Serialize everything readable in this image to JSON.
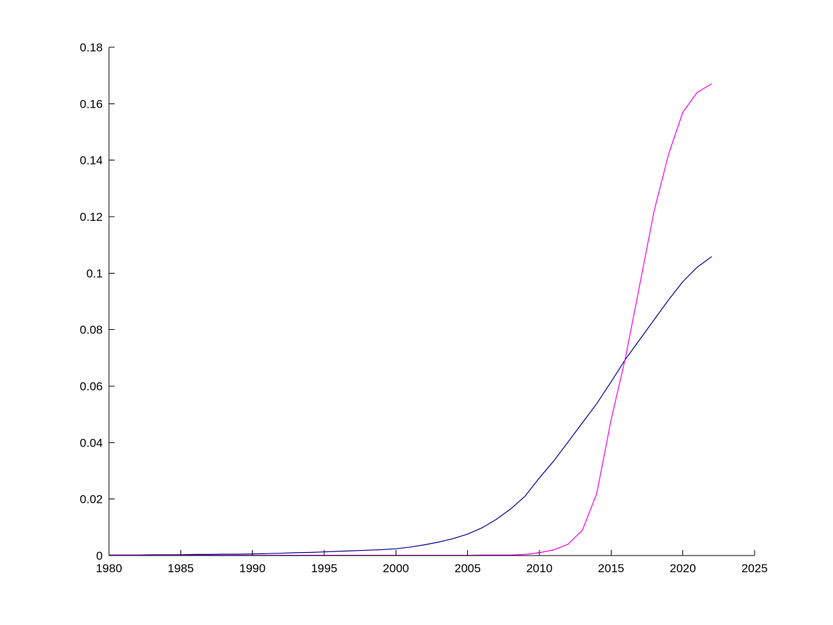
{
  "figure": {
    "background": "#ffffff",
    "axis_color": "#000000"
  },
  "chart_data": {
    "type": "line",
    "title": "",
    "xlabel": "",
    "ylabel": "",
    "grid": false,
    "legend_position": "none",
    "xlim": [
      1980,
      2025
    ],
    "ylim": [
      0,
      0.18
    ],
    "x_tick_values": [
      1980,
      1985,
      1990,
      1995,
      2000,
      2005,
      2010,
      2015,
      2020,
      2025
    ],
    "x_tick_labels": [
      "1980",
      "1985",
      "1990",
      "1995",
      "2000",
      "2005",
      "2010",
      "2015",
      "2020",
      "2025"
    ],
    "y_tick_values": [
      0,
      0.02,
      0.04,
      0.06,
      0.08,
      0.1,
      0.12,
      0.14,
      0.16,
      0.18
    ],
    "y_tick_labels": [
      "0",
      "0.02",
      "0.04",
      "0.06",
      "0.08",
      "0.1",
      "0.12",
      "0.14",
      "0.16",
      "0.18"
    ],
    "x": [
      1980,
      1981,
      1982,
      1983,
      1984,
      1985,
      1986,
      1987,
      1988,
      1989,
      1990,
      1991,
      1992,
      1993,
      1994,
      1995,
      1996,
      1997,
      1998,
      1999,
      2000,
      2001,
      2002,
      2003,
      2004,
      2005,
      2006,
      2007,
      2008,
      2009,
      2010,
      2011,
      2012,
      2013,
      2014,
      2015,
      2016,
      2017,
      2018,
      2019,
      2020,
      2021,
      2022
    ],
    "series": [
      {
        "name": "dark-blue-curve",
        "color": "#00008B",
        "values": [
          0.0002,
          0.0002,
          0.0002,
          0.0003,
          0.0003,
          0.0003,
          0.0004,
          0.0004,
          0.0005,
          0.0005,
          0.0006,
          0.0007,
          0.0008,
          0.001,
          0.0011,
          0.0013,
          0.0015,
          0.0017,
          0.0019,
          0.0021,
          0.0024,
          0.003,
          0.0038,
          0.0048,
          0.006,
          0.0076,
          0.0098,
          0.0128,
          0.0165,
          0.021,
          0.0275,
          0.0335,
          0.0402,
          0.047,
          0.0538,
          0.0615,
          0.0695,
          0.0765,
          0.0835,
          0.0905,
          0.097,
          0.1021,
          0.1058
        ]
      },
      {
        "name": "magenta-curve",
        "color": "#EE00EE",
        "values": [
          0.0001,
          0.0001,
          0.0001,
          0.0001,
          0.0001,
          0.0001,
          0.0001,
          0.0001,
          0.0001,
          0.0001,
          0.0001,
          0.0001,
          0.0001,
          0.0001,
          0.0001,
          0.0001,
          0.0001,
          0.0001,
          0.0001,
          0.0001,
          0.0001,
          0.0001,
          0.0001,
          0.0001,
          0.0001,
          0.0001,
          0.0002,
          0.0002,
          0.0002,
          0.0004,
          0.001,
          0.002,
          0.004,
          0.009,
          0.022,
          0.048,
          0.07,
          0.096,
          0.122,
          0.142,
          0.157,
          0.164,
          0.167
        ]
      }
    ]
  }
}
